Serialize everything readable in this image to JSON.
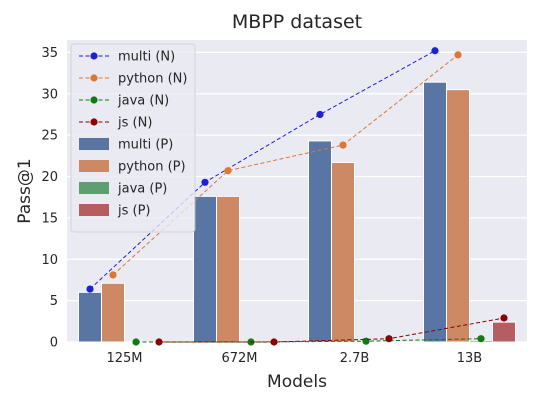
{
  "chart_data": {
    "type": "bar",
    "title": "MBPP dataset",
    "xlabel": "Models",
    "ylabel": "Pass@1",
    "categories": [
      "125M",
      "672M",
      "2.7B",
      "13B"
    ],
    "ylim": [
      0,
      36.5
    ],
    "yticks": [
      0,
      5,
      10,
      15,
      20,
      25,
      30,
      35
    ],
    "grid": true,
    "legend_placement": "upper-left",
    "bar_series": [
      {
        "name": "multi (P)",
        "color": "#5975a4",
        "values": [
          6.0,
          17.6,
          24.3,
          31.4
        ]
      },
      {
        "name": "python (P)",
        "color": "#cc8963",
        "values": [
          7.1,
          17.6,
          21.7,
          30.5
        ]
      },
      {
        "name": "java (P)",
        "color": "#5f9e6e",
        "values": [
          0.0,
          0.0,
          0.0,
          0.2
        ]
      },
      {
        "name": "js (P)",
        "color": "#b55d60",
        "values": [
          0.0,
          0.0,
          0.0,
          2.4
        ]
      }
    ],
    "line_series": [
      {
        "name": "multi (N)",
        "color": "#1f1fd6",
        "values": [
          6.4,
          19.3,
          27.5,
          35.2
        ]
      },
      {
        "name": "python (N)",
        "color": "#dd7733",
        "values": [
          8.1,
          20.7,
          23.8,
          34.7
        ]
      },
      {
        "name": "java (N)",
        "color": "#117a11",
        "values": [
          0.0,
          0.0,
          0.1,
          0.4
        ]
      },
      {
        "name": "js (N)",
        "color": "#8b0000",
        "values": [
          0.0,
          0.0,
          0.4,
          2.9
        ]
      }
    ],
    "legend_order": [
      "multi (N)",
      "python (N)",
      "java (N)",
      "js (N)",
      "multi (P)",
      "python (P)",
      "java (P)",
      "js (P)"
    ]
  }
}
